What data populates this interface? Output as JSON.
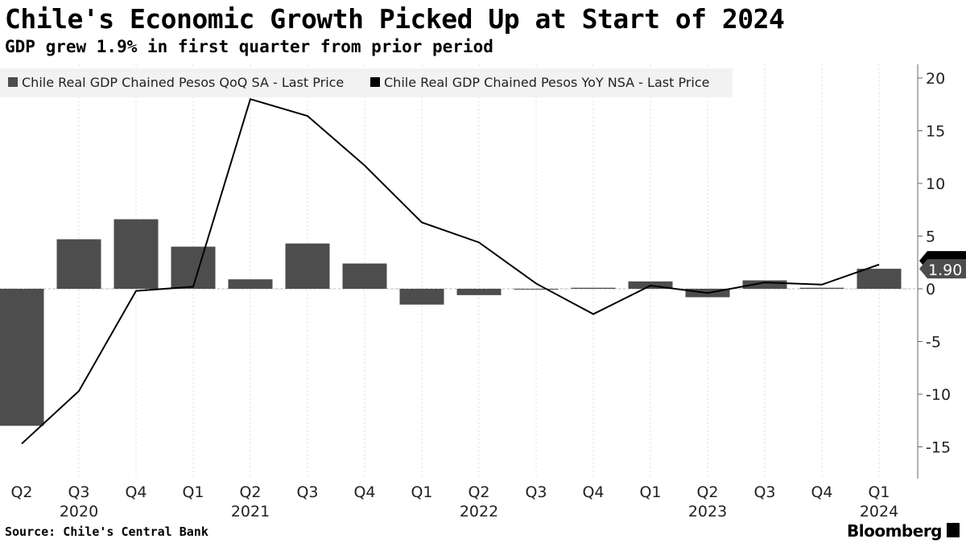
{
  "title": "Chile's Economic Growth Picked Up at Start of 2024",
  "subtitle": "GDP grew 1.9% in first quarter from prior period",
  "source": "Source: Chile's Central Bank",
  "brand": "Bloomberg",
  "chart_data": {
    "type": "bar+line",
    "categories": [
      "Q2",
      "Q3",
      "Q4",
      "Q1",
      "Q2",
      "Q3",
      "Q4",
      "Q1",
      "Q2",
      "Q3",
      "Q4",
      "Q1",
      "Q2",
      "Q3",
      "Q4",
      "Q1"
    ],
    "year_labels": [
      {
        "index": 1,
        "label": "2020"
      },
      {
        "index": 4,
        "label": "2021"
      },
      {
        "index": 8,
        "label": "2022"
      },
      {
        "index": 12,
        "label": "2023"
      },
      {
        "index": 15,
        "label": "2024"
      }
    ],
    "series": [
      {
        "name": "Chile Real GDP Chained Pesos QoQ SA - Last Price",
        "type": "bar",
        "color": "#4d4d4d",
        "values": [
          -13.0,
          4.7,
          6.6,
          4.0,
          0.9,
          4.3,
          2.4,
          -1.5,
          -0.6,
          0.0,
          0.1,
          0.7,
          -0.8,
          0.8,
          0.1,
          1.9
        ]
      },
      {
        "name": "Chile Real GDP Chained Pesos YoY NSA - Last Price",
        "type": "line",
        "color": "#000000",
        "values": [
          -14.7,
          -9.7,
          -0.2,
          0.2,
          18.0,
          16.4,
          11.7,
          6.3,
          4.4,
          0.5,
          -2.4,
          0.3,
          -0.4,
          0.6,
          0.4,
          2.3
        ]
      }
    ],
    "last_value_label": "1.90",
    "yticks": [
      20,
      15,
      10,
      5,
      0,
      -5,
      -10,
      -15
    ],
    "ylim": [
      -18,
      21
    ],
    "legend": "top-left"
  }
}
